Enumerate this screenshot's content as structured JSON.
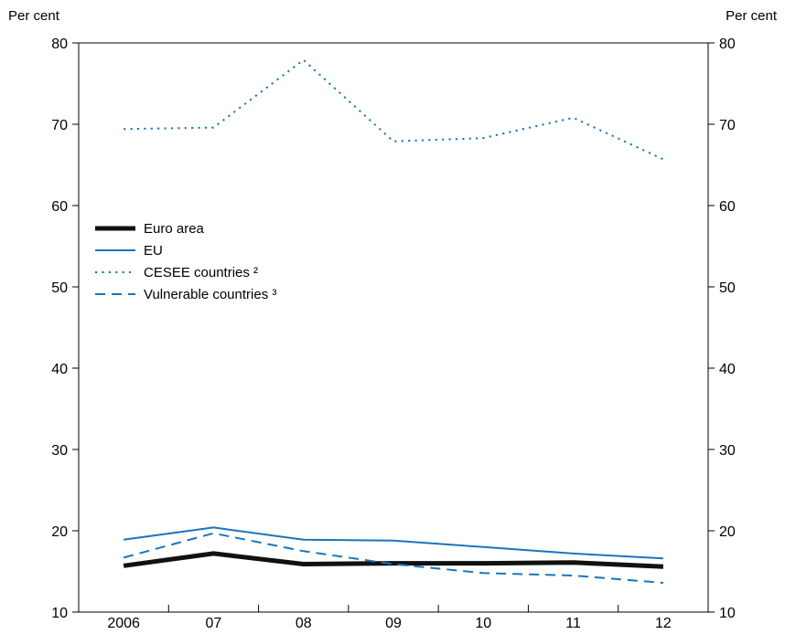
{
  "chart_data": {
    "type": "line",
    "ylabel_left": "Per cent",
    "ylabel_right": "Per cent",
    "ylim": [
      10,
      80
    ],
    "yticks": [
      10,
      20,
      30,
      40,
      50,
      60,
      70,
      80
    ],
    "categories": [
      "2006",
      "07",
      "08",
      "09",
      "10",
      "11",
      "12"
    ],
    "grid": false,
    "legend_position": "left-center",
    "series": [
      {
        "name": "Euro area",
        "style": "solid-thick",
        "color": "#111111",
        "values": [
          15.7,
          17.2,
          15.9,
          16.0,
          16.0,
          16.1,
          15.6
        ]
      },
      {
        "name": "EU",
        "style": "solid",
        "color": "#1b75bb",
        "values": [
          18.9,
          20.4,
          18.9,
          18.8,
          18.0,
          17.2,
          16.6
        ]
      },
      {
        "name": "CESEE countries ²",
        "style": "dotted",
        "color": "#1b75bb",
        "values": [
          69.4,
          69.6,
          77.9,
          67.9,
          68.3,
          70.8,
          65.7
        ]
      },
      {
        "name": "Vulnerable countries ³",
        "style": "dashed",
        "color": "#1b75bb",
        "values": [
          16.7,
          19.7,
          17.5,
          15.9,
          14.8,
          14.5,
          13.6
        ]
      }
    ]
  }
}
